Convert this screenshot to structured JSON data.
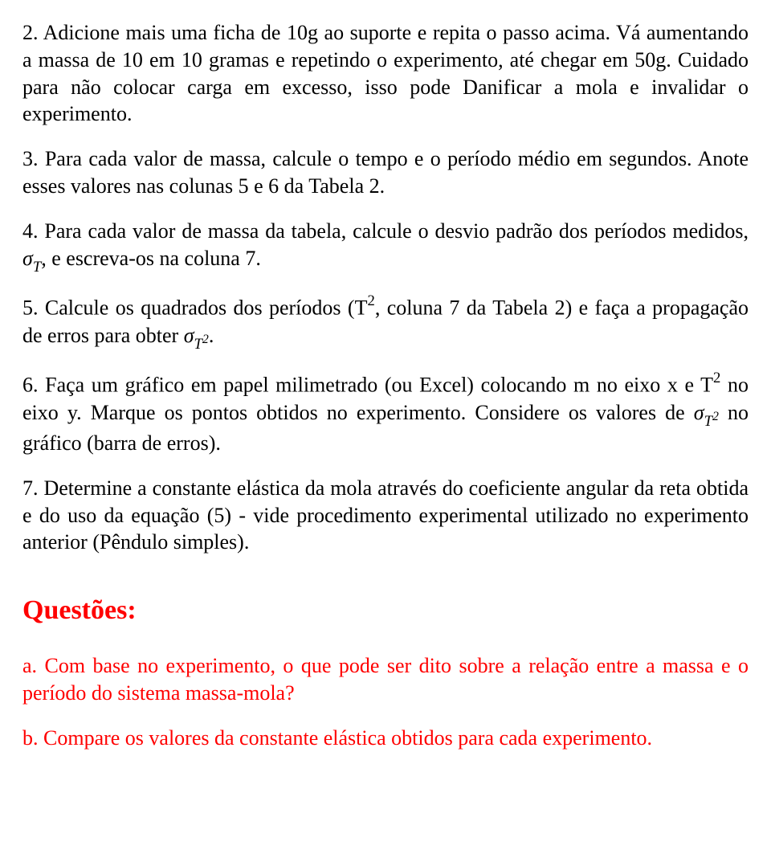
{
  "p1a": "2. Adicione mais uma ficha de 10g ao suporte e repita o passo acima. Vá aumentando a massa de 10 em 10 gramas e repetindo o experimento, até chegar em 50g. Cuidado para não colocar carga em excesso, isso pode Danificar a mola e invalidar o experimento.",
  "p2": "3. Para cada valor de massa, calcule o tempo e o período médio em segundos. Anote esses valores nas colunas 5 e 6 da Tabela 2.",
  "p3a": "4. Para cada valor de massa da tabela, calcule o desvio padrão dos períodos medidos, ",
  "p3b": ", e escreva-os na coluna 7.",
  "p4a": "5. Calcule os quadrados dos períodos (T",
  "p4b": ", coluna 7 da Tabela 2) e faça a propagação de erros para obter ",
  "p4c": ".",
  "p5a": "6. Faça um gráfico em papel milimetrado (ou Excel) colocando m no eixo x e T",
  "p5b": " no eixo y. Marque os pontos obtidos no experimento. Considere os valores de ",
  "p5c": " no gráfico (barra de erros).",
  "p6": "7. Determine a constante elástica da mola através do coeficiente angular da reta obtida e do uso da equação (5) - vide procedimento experimental utilizado no experimento anterior (Pêndulo simples).",
  "heading": "Questões:",
  "qa": "a. Com base no experimento, o que pode ser dito sobre a relação entre a massa e o período do sistema massa-mola?",
  "qb": "b. Compare os valores da constante elástica obtidos para cada experimento.",
  "sigma": "σ",
  "T": "T",
  "sq": "2",
  "two": "2"
}
